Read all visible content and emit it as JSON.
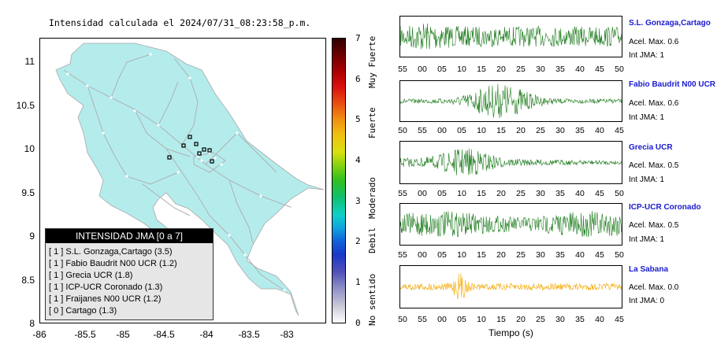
{
  "map": {
    "title": "Intensidad calculada el 2024/07/31_08:23:58_p.m.",
    "y_ticks": [
      "11",
      "10.5",
      "10",
      "9.5",
      "9",
      "8.5",
      "8"
    ],
    "x_ticks": [
      "-86",
      "-85.5",
      "-85",
      "-84.5",
      "-84",
      "-83.5",
      "-83"
    ],
    "land_color": "#b4ecec",
    "road_color": "#b0b0b0",
    "station_marker": "open-square"
  },
  "legend": {
    "title": "INTENSIDAD JMA [0 a 7]",
    "items": [
      "[ 1 ]  S.L. Gonzaga,Cartago (3.5)",
      "[ 1 ]  Fabio Baudrit N00 UCR (1.2)",
      "[ 1 ]  Grecia UCR (1.8)",
      "[ 1 ]  ICP-UCR Coronado (1.3)",
      "[ 1 ]  Fraijanes N00 UCR (1.2)",
      "[ 0 ]  Cartago (1.3)"
    ]
  },
  "colorbar": {
    "ticks": [
      "0",
      "1",
      "2",
      "3",
      "4",
      "5",
      "6",
      "7"
    ],
    "labels": [
      "No sentido",
      "Debil",
      "Moderado",
      "Fuerte",
      "Muy Fuerte"
    ]
  },
  "stations": [
    {
      "name": "S.L. Gonzaga,Cartago",
      "accel": "Acel. Max. 0.6",
      "int": "Int JMA: 1",
      "color": "#1a7a1a",
      "ticks": [
        "55",
        "00",
        "05",
        "10",
        "15",
        "20",
        "25",
        "30",
        "35",
        "40",
        "45",
        "50"
      ]
    },
    {
      "name": "Fabio Baudrit N00 UCR",
      "accel": "Acel. Max. 0.6",
      "int": "Int JMA: 1",
      "color": "#1a7a1a",
      "ticks": [
        "50",
        "55",
        "00",
        "05",
        "10",
        "15",
        "20",
        "25",
        "30",
        "35",
        "40",
        "45"
      ]
    },
    {
      "name": "Grecia UCR",
      "accel": "Acel. Max. 0.5",
      "int": "Int JMA: 1",
      "color": "#1a7a1a",
      "ticks": [
        "55",
        "00",
        "05",
        "10",
        "15",
        "20",
        "25",
        "30",
        "35",
        "40",
        "45",
        "50"
      ]
    },
    {
      "name": "ICP-UCR Coronado",
      "accel": "Acel. Max. 0.5",
      "int": "Int JMA: 1",
      "color": "#1a7a1a",
      "ticks": [
        "55",
        "00",
        "05",
        "10",
        "15",
        "20",
        "25",
        "30",
        "35",
        "40",
        "45",
        "50"
      ]
    },
    {
      "name": "La Sabana",
      "accel": "Acel. Max. 0.0",
      "int": "Int JMA: 0",
      "color": "#f5a800",
      "ticks": [
        "50",
        "55",
        "00",
        "05",
        "10",
        "15",
        "20",
        "25",
        "30",
        "35",
        "40",
        "45"
      ]
    }
  ],
  "waveform_xlabel": "Tiempo (s)"
}
